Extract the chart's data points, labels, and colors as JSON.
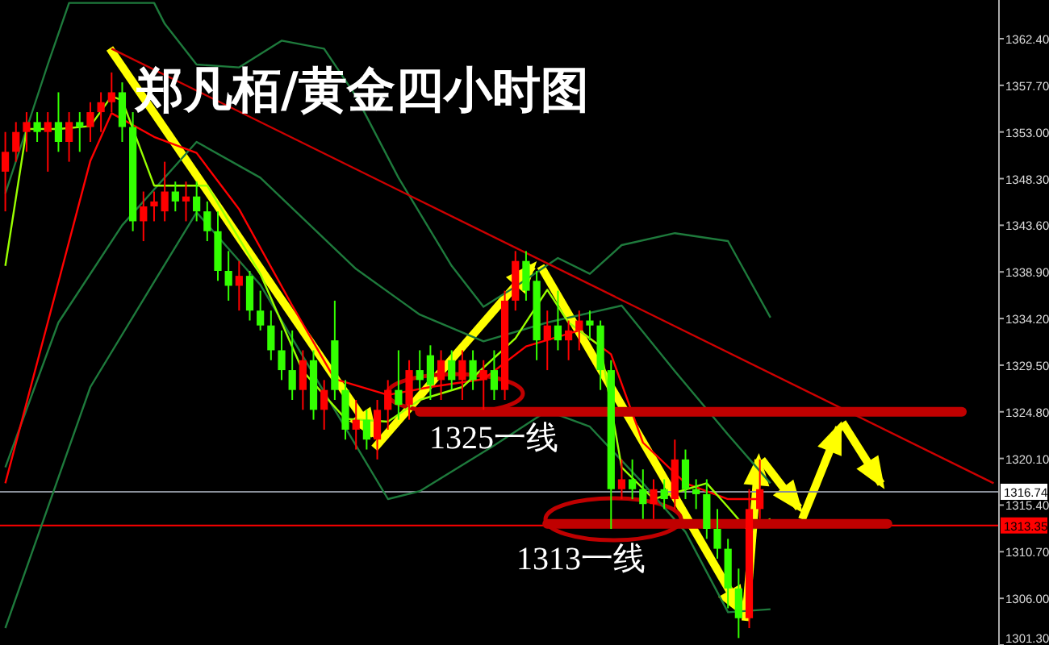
{
  "chart_data": {
    "type": "candlestick",
    "title": "郑凡栢/黄金四小时图",
    "categories": [
      null,
      null,
      null,
      null,
      null,
      null,
      null,
      null,
      null,
      null,
      null,
      null,
      null,
      null,
      null,
      null,
      null,
      null,
      null,
      null,
      null,
      null,
      null,
      null,
      null,
      null,
      null,
      null,
      null,
      null,
      null,
      null,
      null,
      null,
      null,
      null,
      null,
      null,
      null,
      null,
      null,
      null,
      null,
      null,
      null,
      null,
      null,
      null,
      null,
      null,
      null,
      null,
      null,
      null,
      null,
      null,
      null,
      null,
      null,
      null,
      null,
      null,
      null,
      null,
      null,
      null,
      null,
      null,
      null,
      null,
      null,
      null,
      null,
      null,
      null,
      null,
      null,
      null,
      null,
      null,
      null,
      null,
      null,
      null,
      null,
      null,
      null,
      null,
      null,
      null,
      null,
      null,
      null,
      null
    ],
    "ohlc": [
      [
        1349,
        1353,
        1345,
        1351
      ],
      [
        1351,
        1354,
        1350,
        1353
      ],
      [
        1353,
        1355,
        1351,
        1354
      ],
      [
        1354,
        1355,
        1352,
        1353
      ],
      [
        1353,
        1355,
        1349,
        1354
      ],
      [
        1354,
        1357,
        1351,
        1352
      ],
      [
        1352,
        1355,
        1350,
        1354
      ],
      [
        1354,
        1355,
        1351,
        1353.5
      ],
      [
        1353.5,
        1356,
        1352,
        1355
      ],
      [
        1355,
        1357,
        1353,
        1356
      ],
      [
        1356,
        1359,
        1355,
        1357
      ],
      [
        1357,
        1358,
        1352,
        1353.5
      ],
      [
        1353.5,
        1355,
        1343,
        1344
      ],
      [
        1344,
        1347,
        1342,
        1345.5
      ],
      [
        1345.5,
        1347,
        1344,
        1346
      ],
      [
        1345,
        1350,
        1344,
        1347
      ],
      [
        1347,
        1348,
        1345,
        1346
      ],
      [
        1346,
        1348,
        1344,
        1346.5
      ],
      [
        1346.5,
        1348,
        1344,
        1345
      ],
      [
        1345,
        1346,
        1342,
        1343
      ],
      [
        1343,
        1345,
        1338,
        1339
      ],
      [
        1339,
        1341,
        1336,
        1337.5
      ],
      [
        1337.5,
        1340,
        1335,
        1338.5
      ],
      [
        1338.5,
        1339,
        1334,
        1335
      ],
      [
        1335,
        1337,
        1333,
        1333.5
      ],
      [
        1333.5,
        1335,
        1330,
        1331
      ],
      [
        1331,
        1333,
        1328,
        1329
      ],
      [
        1329,
        1333,
        1326,
        1327
      ],
      [
        1327,
        1331,
        1325,
        1330
      ],
      [
        1330,
        1331,
        1324,
        1325
      ],
      [
        1325,
        1328,
        1323,
        1327
      ],
      [
        1332,
        1336,
        1326,
        1327
      ],
      [
        1327,
        1328,
        1322,
        1323
      ],
      [
        1323,
        1326,
        1321,
        1324
      ],
      [
        1324,
        1325,
        1321,
        1322
      ],
      [
        1322,
        1326,
        1320,
        1325
      ],
      [
        1325,
        1328,
        1323,
        1327
      ],
      [
        1327,
        1331,
        1324,
        1325.5
      ],
      [
        1325.5,
        1330,
        1324,
        1329
      ],
      [
        1329,
        1331,
        1327,
        1328
      ],
      [
        1330.5,
        1331.5,
        1326,
        1327.5
      ],
      [
        1328,
        1331,
        1326,
        1330
      ],
      [
        1330,
        1331,
        1327,
        1328
      ],
      [
        1328,
        1331,
        1326,
        1330
      ],
      [
        1330,
        1331,
        1327,
        1328
      ],
      [
        1328,
        1330,
        1325,
        1329
      ],
      [
        1329,
        1331,
        1326,
        1327
      ],
      [
        1327,
        1337,
        1326,
        1336
      ],
      [
        1336,
        1341,
        1335,
        1340
      ],
      [
        1340,
        1341,
        1336,
        1337
      ],
      [
        1338,
        1339,
        1330,
        1332
      ],
      [
        1332,
        1335,
        1329,
        1333.5
      ],
      [
        1333.5,
        1337,
        1331,
        1332
      ],
      [
        1332,
        1334,
        1330,
        1333
      ],
      [
        1333,
        1335,
        1331,
        1334
      ],
      [
        1334,
        1335,
        1332,
        1333.5
      ],
      [
        1333.5,
        1334,
        1327,
        1329
      ],
      [
        1329,
        1330,
        1313,
        1317
      ],
      [
        1317,
        1320,
        1316,
        1318
      ],
      [
        1318,
        1320,
        1316,
        1317
      ],
      [
        1317,
        1319,
        1314,
        1315.5
      ],
      [
        1315.5,
        1318,
        1314,
        1317
      ],
      [
        1317,
        1318,
        1315,
        1316
      ],
      [
        1316,
        1322,
        1315,
        1320
      ],
      [
        1320,
        1321,
        1316,
        1317
      ],
      [
        1317,
        1318,
        1315,
        1316.5
      ],
      [
        1316.5,
        1318,
        1312,
        1313
      ],
      [
        1313,
        1315,
        1310,
        1311
      ],
      [
        1311,
        1312,
        1305,
        1307
      ],
      [
        1307,
        1309,
        1302,
        1304
      ],
      [
        1304,
        1317,
        1303,
        1315
      ],
      [
        1315,
        1320,
        1314,
        1317
      ],
      null,
      null,
      null,
      null,
      null,
      null,
      null,
      null,
      null,
      null,
      null,
      null,
      null,
      null,
      null,
      null,
      null,
      null,
      null,
      null,
      null,
      null
    ],
    "colors": [
      "#ff0000",
      "#ff0000",
      "#ff0000",
      "#33ff00",
      "#ff0000",
      "#33ff00",
      "#ff0000",
      "#33ff00",
      "#ff0000",
      "#ff0000",
      "#ff0000",
      "#33ff00",
      "#33ff00",
      "#ff0000",
      "#ff0000",
      "#ff0000",
      "#33ff00",
      "#ff0000",
      "#33ff00",
      "#33ff00",
      "#33ff00",
      "#33ff00",
      "#ff0000",
      "#33ff00",
      "#33ff00",
      "#33ff00",
      "#33ff00",
      "#33ff00",
      "#ff0000",
      "#33ff00",
      "#ff0000",
      "#33ff00",
      "#33ff00",
      "#ff0000",
      "#33ff00",
      "#ff0000",
      "#ff0000",
      "#33ff00",
      "#ff0000",
      "#33ff00",
      "#33ff00",
      "#ff0000",
      "#33ff00",
      "#ff0000",
      "#33ff00",
      "#ff0000",
      "#33ff00",
      "#ff0000",
      "#ff0000",
      "#33ff00",
      "#33ff00",
      "#ff0000",
      "#33ff00",
      "#ff0000",
      "#ff0000",
      "#33ff00",
      "#33ff00",
      "#33ff00",
      "#ff0000",
      "#33ff00",
      "#33ff00",
      "#ff0000",
      "#33ff00",
      "#ff0000",
      "#33ff00",
      "#33ff00",
      "#33ff00",
      "#33ff00",
      "#33ff00",
      "#33ff00",
      "#ff0000",
      "#ff0000",
      null,
      null,
      null,
      null,
      null,
      null,
      null,
      null,
      null,
      null,
      null,
      null,
      null,
      null,
      null,
      null,
      null,
      null,
      null,
      null,
      null,
      null
    ],
    "series": [
      {
        "type": "line",
        "color": "#1e7a3c",
        "values": [
          1346.8,
          null,
          null,
          null,
          1359.8,
          null,
          1366.0,
          null,
          null,
          null,
          null,
          null,
          null,
          null,
          1366.0,
          1363.9,
          null,
          null,
          1359.8,
          null,
          null,
          null,
          1359.5,
          null,
          null,
          null,
          1362.2,
          null,
          null,
          null,
          1361.4,
          null,
          null,
          1356.6,
          null,
          null,
          null,
          1348.4,
          null,
          null,
          null,
          null,
          1339.5,
          null,
          null,
          1335.4,
          null,
          null,
          1337.4,
          null,
          null,
          null,
          1340.3,
          null,
          null,
          1338.7,
          null,
          null,
          1341.6,
          null,
          null,
          null,
          null,
          1342.8,
          null,
          null,
          null,
          null,
          1342.0,
          null,
          null,
          null,
          1334.3,
          null,
          null,
          null,
          null,
          null,
          null,
          null,
          null,
          null,
          null,
          null,
          null,
          null,
          null,
          null,
          null,
          null,
          null,
          null,
          null,
          null
        ]
      },
      {
        "type": "line",
        "color": "#1e7a3c",
        "values": [
          1319.2,
          null,
          null,
          null,
          null,
          1333.8,
          null,
          null,
          null,
          null,
          null,
          1343.6,
          null,
          null,
          null,
          null,
          null,
          null,
          1352.0,
          null,
          null,
          null,
          null,
          null,
          1348.4,
          null,
          null,
          null,
          null,
          null,
          null,
          null,
          null,
          1339.2,
          null,
          null,
          null,
          null,
          null,
          1334.6,
          null,
          null,
          null,
          null,
          null,
          1331.9,
          null,
          null,
          null,
          null,
          null,
          1333.8,
          null,
          null,
          null,
          null,
          null,
          null,
          1335.5,
          null,
          null,
          null,
          null,
          1328.9,
          null,
          null,
          null,
          null,
          1322.5,
          null,
          null,
          null,
          1317.6,
          null,
          null,
          null,
          null,
          null,
          null,
          null,
          null,
          null,
          null,
          null,
          null,
          null,
          null,
          null,
          null,
          null,
          null,
          null,
          null,
          null
        ]
      },
      {
        "type": "line",
        "color": "#1e7a3c",
        "values": [
          1303.0,
          null,
          null,
          null,
          null,
          null,
          null,
          null,
          1327.3,
          null,
          null,
          null,
          null,
          null,
          1337.9,
          null,
          null,
          null,
          1344.9,
          null,
          null,
          null,
          null,
          null,
          1337.6,
          null,
          null,
          null,
          null,
          null,
          null,
          null,
          null,
          1321.4,
          null,
          null,
          1316.0,
          null,
          null,
          1316.8,
          null,
          null,
          null,
          null,
          null,
          null,
          1321.4,
          null,
          null,
          null,
          null,
          1324.9,
          null,
          null,
          null,
          1323.3,
          null,
          null,
          null,
          null,
          1317.6,
          null,
          null,
          null,
          1312.7,
          null,
          null,
          null,
          1304.6,
          null,
          null,
          null,
          1304.9,
          null,
          null,
          null,
          null,
          null,
          null,
          null,
          null,
          null,
          null,
          null,
          null,
          null,
          null,
          null,
          null,
          null,
          null,
          null,
          null,
          null
        ]
      },
      {
        "type": "line",
        "color": "#ff0000",
        "values": [
          1317.6,
          null,
          null,
          null,
          1333.8,
          null,
          null,
          null,
          1350.1,
          null,
          1354.9,
          null,
          null,
          null,
          1352.5,
          null,
          null,
          null,
          1350.9,
          null,
          null,
          null,
          1345.2,
          null,
          null,
          null,
          null,
          1335.5,
          null,
          null,
          null,
          1328.1,
          null,
          null,
          null,
          null,
          1326.5,
          null,
          null,
          null,
          1327.3,
          null,
          null,
          null,
          null,
          1328.1,
          null,
          null,
          null,
          1331.4,
          null,
          null,
          null,
          null,
          1333.0,
          null,
          null,
          1330.6,
          null,
          null,
          1321.7,
          null,
          null,
          null,
          1317.6,
          null,
          null,
          null,
          1316.0,
          null,
          null,
          1316.0,
          null,
          null,
          null,
          null,
          null,
          null,
          null,
          null,
          null,
          null,
          null,
          null,
          null,
          null,
          null,
          null,
          null,
          null,
          null,
          null,
          null,
          null
        ]
      },
      {
        "type": "line",
        "color": "#99ff00",
        "values": [
          1339.5,
          null,
          1353.3,
          null,
          null,
          1353.3,
          null,
          null,
          1353.6,
          null,
          1356.6,
          1356.2,
          null,
          null,
          1347.6,
          null,
          null,
          null,
          null,
          1347.6,
          null,
          null,
          null,
          null,
          1338.7,
          null,
          null,
          null,
          1328.9,
          null,
          null,
          null,
          1324.1,
          null,
          null,
          null,
          1323.8,
          null,
          null,
          1326.0,
          null,
          null,
          null,
          1327.3,
          null,
          null,
          null,
          null,
          1332.2,
          null,
          null,
          1337.1,
          null,
          1333.8,
          null,
          null,
          1331.4,
          null,
          1319.2,
          null,
          null,
          1316.0,
          null,
          null,
          null,
          null,
          1317.6,
          null,
          1315.2,
          null,
          1312.7,
          null,
          1314.0,
          null,
          null,
          null,
          null,
          null,
          null,
          null,
          null,
          null,
          null,
          null,
          null,
          null,
          null,
          null,
          null,
          null,
          null,
          null,
          null,
          null
        ]
      },
      {
        "type": "line",
        "color": "#cc0000",
        "values": [
          null,
          null,
          null,
          null,
          null,
          null,
          null,
          null,
          null,
          null,
          1361.4,
          null,
          null,
          null,
          null,
          null,
          null,
          null,
          null,
          null,
          null,
          null,
          null,
          null,
          null,
          null,
          null,
          null,
          null,
          null,
          null,
          null,
          null,
          null,
          null,
          null,
          null,
          null,
          null,
          null,
          null,
          null,
          null,
          null,
          null,
          null,
          null,
          null,
          null,
          null,
          null,
          null,
          null,
          null,
          null,
          null,
          null,
          null,
          null,
          null,
          null,
          null,
          null,
          null,
          null,
          null,
          null,
          null,
          null,
          null,
          null,
          null,
          null,
          null,
          null,
          null,
          null,
          null,
          null,
          null,
          null,
          null,
          null,
          null,
          null,
          null,
          null,
          null,
          null,
          null,
          null,
          null,
          null,
          1317.6
        ]
      },
      {
        "type": "line",
        "color": "#c00000",
        "values": [
          null,
          null,
          null,
          null,
          null,
          null,
          null,
          null,
          null,
          null,
          null,
          null,
          null,
          null,
          null,
          null,
          null,
          null,
          null,
          null,
          null,
          null,
          null,
          null,
          null,
          null,
          null,
          null,
          null,
          null,
          null,
          null,
          null,
          null,
          null,
          null,
          null,
          null,
          null,
          1324.8,
          null,
          null,
          null,
          null,
          null,
          null,
          null,
          null,
          null,
          null,
          null,
          null,
          null,
          null,
          null,
          null,
          null,
          null,
          null,
          null,
          null,
          null,
          null,
          null,
          null,
          null,
          null,
          null,
          null,
          null,
          null,
          null,
          null,
          null,
          null,
          null,
          null,
          null,
          null,
          null,
          null,
          null,
          null,
          null,
          null,
          null,
          null,
          null,
          null,
          null,
          1324.8,
          null,
          null,
          null
        ]
      },
      {
        "type": "line",
        "color": "#c00000",
        "values": [
          null,
          null,
          null,
          null,
          null,
          null,
          null,
          null,
          null,
          null,
          null,
          null,
          null,
          null,
          null,
          null,
          null,
          null,
          null,
          null,
          null,
          null,
          null,
          null,
          null,
          null,
          null,
          null,
          null,
          null,
          null,
          null,
          null,
          null,
          null,
          null,
          null,
          null,
          null,
          null,
          null,
          null,
          null,
          null,
          null,
          null,
          null,
          null,
          null,
          null,
          null,
          1313.5,
          null,
          null,
          null,
          null,
          null,
          null,
          null,
          null,
          null,
          null,
          null,
          null,
          null,
          null,
          null,
          null,
          null,
          null,
          null,
          null,
          null,
          null,
          null,
          null,
          null,
          null,
          null,
          null,
          null,
          null,
          null,
          1313.5,
          null,
          null,
          null,
          null,
          null,
          null,
          null,
          null,
          null,
          null
        ]
      }
    ],
    "ref_lines": [
      {
        "axis": "y",
        "value": 1316.74,
        "label": "1316.74",
        "color": "#8a8f99"
      },
      {
        "axis": "y",
        "value": 1313.35,
        "label": "1313.35",
        "color": "#ff0000"
      }
    ],
    "ylim": [
      1301.3,
      1366.3
    ],
    "yticks": [
      {
        "value": 1362.4,
        "label": "1362.40"
      },
      {
        "value": 1357.7,
        "label": "1357.70"
      },
      {
        "value": 1353.0,
        "label": "1353.00"
      },
      {
        "value": 1348.3,
        "label": "1348.30"
      },
      {
        "value": 1343.6,
        "label": "1343.60"
      },
      {
        "value": 1338.9,
        "label": "1338.90"
      },
      {
        "value": 1334.2,
        "label": "1334.20"
      },
      {
        "value": 1329.5,
        "label": "1329.50"
      },
      {
        "value": 1324.8,
        "label": "1324.80"
      },
      {
        "value": 1320.1,
        "label": "1320.10"
      },
      {
        "value": 1315.4,
        "label": "1315.40"
      },
      {
        "value": 1310.7,
        "label": "1310.70"
      },
      {
        "value": 1306.0,
        "label": "1306.00"
      },
      {
        "value": 1301.3,
        "label": "1301.30"
      }
    ],
    "annotations": [
      "1325一线",
      "1313一线"
    ]
  }
}
